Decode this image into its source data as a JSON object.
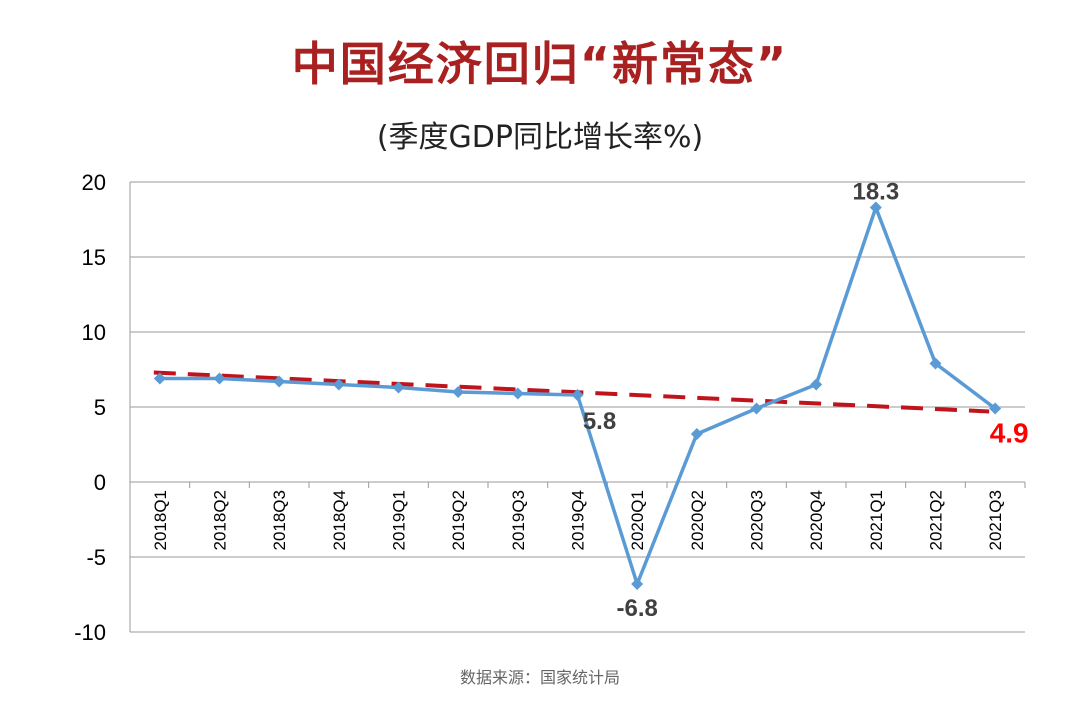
{
  "chart_data": {
    "type": "line",
    "title": "中国经济回归“新常态”",
    "subtitle": "(季度GDP同比增长率%)",
    "source": "数据来源：国家统计局",
    "categories": [
      "2018Q1",
      "2018Q2",
      "2018Q3",
      "2018Q4",
      "2019Q1",
      "2019Q2",
      "2019Q3",
      "2019Q4",
      "2020Q1",
      "2020Q2",
      "2020Q3",
      "2020Q4",
      "2021Q1",
      "2021Q2",
      "2021Q3"
    ],
    "series": [
      {
        "values": [
          6.9,
          6.9,
          6.7,
          6.5,
          6.3,
          6.0,
          5.9,
          5.8,
          -6.8,
          3.2,
          4.9,
          6.5,
          18.3,
          7.9,
          4.9
        ],
        "color": "#5b9bd5",
        "marker": "diamond"
      }
    ],
    "trendline": {
      "type": "linear",
      "start": 7.3,
      "end": 4.7,
      "color": "#c0141c",
      "style": "dashed"
    },
    "data_labels": [
      {
        "index": 7,
        "text": "5.8",
        "color": "#404040"
      },
      {
        "index": 8,
        "text": "-6.8",
        "color": "#404040"
      },
      {
        "index": 12,
        "text": "18.3",
        "color": "#404040"
      },
      {
        "index": 14,
        "text": "4.9",
        "color": "#ff0000"
      }
    ],
    "ylim": [
      -10,
      20
    ],
    "yticks": [
      -10,
      -5,
      0,
      5,
      10,
      15,
      20
    ],
    "grid": true
  }
}
